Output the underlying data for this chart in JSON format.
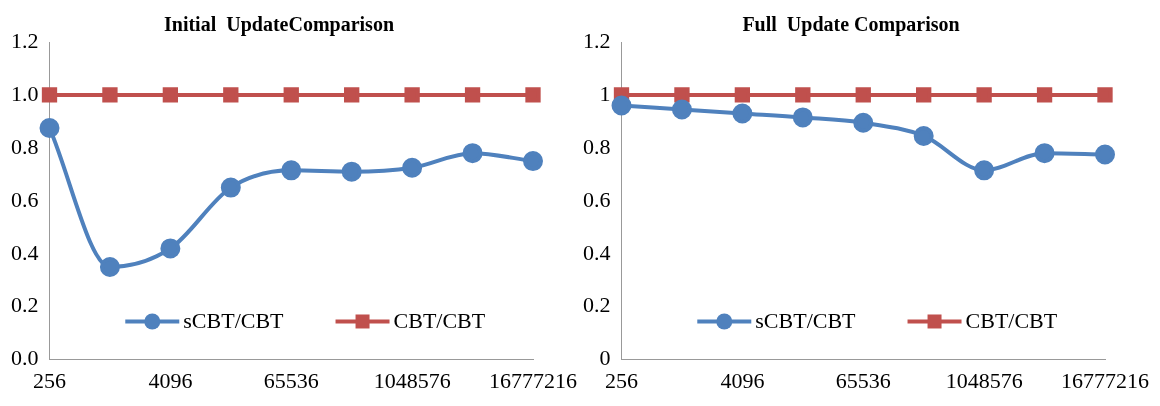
{
  "chart_data": [
    {
      "type": "line",
      "title": "Initial  UpdateComparison",
      "categories": [
        "256",
        null,
        "4096",
        null,
        "65536",
        null,
        "1048576",
        null,
        "16777216"
      ],
      "series": [
        {
          "name": "sCBT/CBT",
          "color": "#4f81bd",
          "marker": "circle",
          "values": [
            0.875,
            0.35,
            0.42,
            0.65,
            0.715,
            0.71,
            0.725,
            0.78,
            0.75
          ]
        },
        {
          "name": "CBT/CBT",
          "color": "#c0504d",
          "marker": "square",
          "values": [
            1,
            1,
            1,
            1,
            1,
            1,
            1,
            1,
            1
          ]
        }
      ],
      "ylim": [
        0,
        1.2
      ],
      "yticks": [
        {
          "value": 0,
          "label": "0.0"
        },
        {
          "value": 0.2,
          "label": "0.2"
        },
        {
          "value": 0.4,
          "label": "0.4"
        },
        {
          "value": 0.6,
          "label": "0.6"
        },
        {
          "value": 0.8,
          "label": "0.8"
        },
        {
          "value": 1,
          "label": "1.0"
        },
        {
          "value": 1.2,
          "label": "1.2"
        }
      ],
      "grid": false,
      "legend": "bottom"
    },
    {
      "type": "line",
      "title": "Full  Update Comparison",
      "categories": [
        "256",
        null,
        "4096",
        null,
        "65536",
        null,
        "1048576",
        null,
        "16777216"
      ],
      "series": [
        {
          "name": "sCBT/CBT",
          "color": "#4f81bd",
          "marker": "circle",
          "values": [
            0.96,
            0.945,
            0.93,
            0.915,
            0.895,
            0.845,
            0.715,
            0.78,
            0.775
          ]
        },
        {
          "name": "CBT/CBT",
          "color": "#c0504d",
          "marker": "square",
          "values": [
            1,
            1,
            1,
            1,
            1,
            1,
            1,
            1,
            1
          ]
        }
      ],
      "ylim": [
        0,
        1.2
      ],
      "yticks": [
        0,
        0.2,
        0.4,
        0.6,
        0.8,
        1,
        1.2
      ],
      "grid": false,
      "legend": "bottom"
    }
  ]
}
